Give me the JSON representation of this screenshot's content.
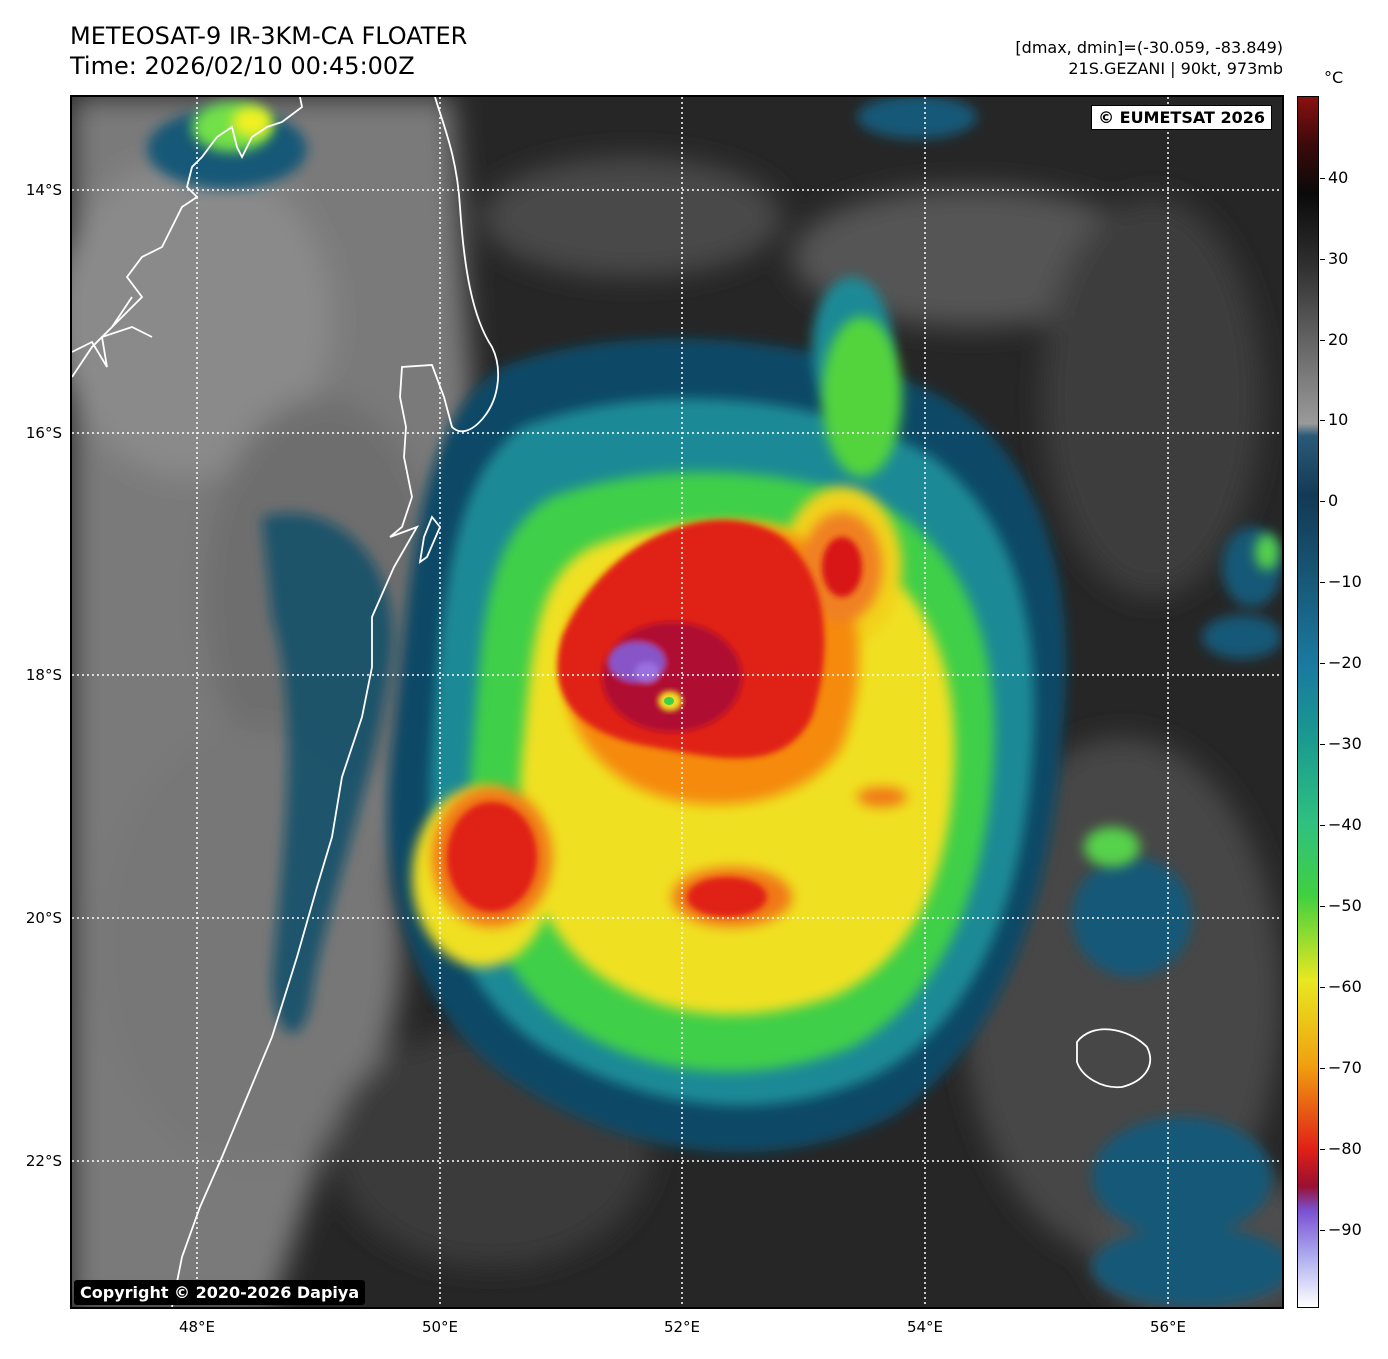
{
  "header": {
    "title_line1": "METEOSAT-9 IR-3KM-CA FLOATER",
    "title_line2": "Time: 2026/02/10 00:45:00Z",
    "meta_line1": "[dmax, dmin]=(-30.059, -83.849)",
    "meta_line2": "21S.GEZANI | 90kt, 973mb"
  },
  "map": {
    "lat_labels": [
      "14°S",
      "16°S",
      "18°S",
      "20°S",
      "22°S"
    ],
    "lon_labels": [
      "48°E",
      "50°E",
      "52°E",
      "54°E",
      "56°E"
    ],
    "eumetsat_badge": "© EUMETSAT 2026",
    "copyright_badge": "Copyright © 2020-2026 Dapiya"
  },
  "colorbar": {
    "unit": "°C",
    "tick_labels": [
      "40",
      "30",
      "20",
      "10",
      "0",
      "−10",
      "−20",
      "−30",
      "−40",
      "−50",
      "−60",
      "−70",
      "−80",
      "−90"
    ]
  }
}
